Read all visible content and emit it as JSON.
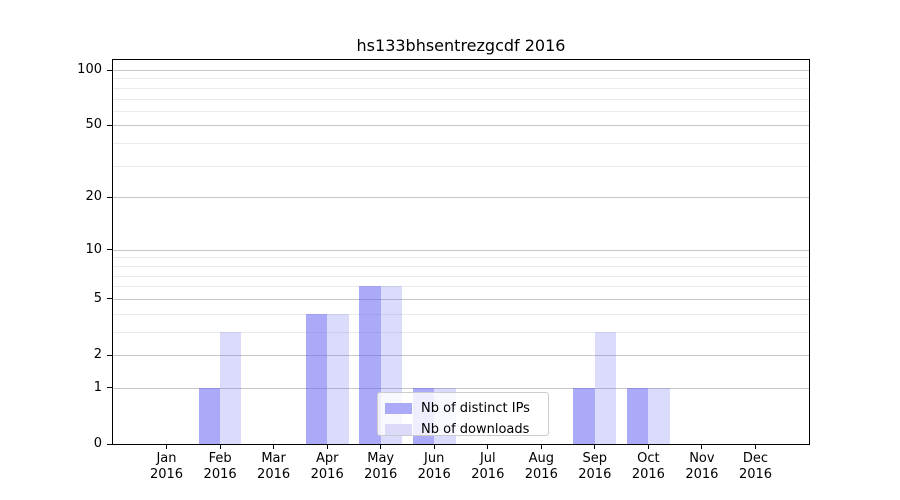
{
  "chart_data": {
    "type": "bar",
    "title": "hs133bhsentrezgcdf 2016",
    "months": [
      "Jan",
      "Feb",
      "Mar",
      "Apr",
      "May",
      "Jun",
      "Jul",
      "Aug",
      "Sep",
      "Oct",
      "Nov",
      "Dec"
    ],
    "year": "2016",
    "series": [
      {
        "id": "distinct-ips",
        "name": "Nb of distinct IPs",
        "bar_color": "rgba(98,98,242,0.54)",
        "swatch_color": "#aaaaf8",
        "values": [
          0,
          1,
          0,
          4,
          6,
          1,
          0,
          0,
          1,
          1,
          0,
          0
        ]
      },
      {
        "id": "downloads",
        "name": "Nb of downloads",
        "bar_color": "rgba(98,98,242,0.23)",
        "swatch_color": "#dbdbf9",
        "values": [
          0,
          3,
          0,
          4,
          6,
          1,
          0,
          0,
          3,
          1,
          0,
          0
        ]
      }
    ],
    "yticks": [
      0,
      1,
      2,
      5,
      10,
      20,
      50,
      100
    ],
    "minor_gridlines": [
      3,
      4,
      6,
      7,
      8,
      9,
      30,
      40,
      60,
      70,
      80,
      90
    ],
    "scale": "log1p",
    "ylim": [
      0,
      100
    ],
    "grid": true,
    "legend_position": "lower center"
  },
  "colors": {
    "background": "#ffffff",
    "axis": "#000000",
    "text": "#000000",
    "grid_major": "#c6c6c6",
    "grid_minor": "#ebebeb",
    "legend_border": "#cccccc",
    "legend_bg": "rgba(255,255,255,0.8)"
  }
}
